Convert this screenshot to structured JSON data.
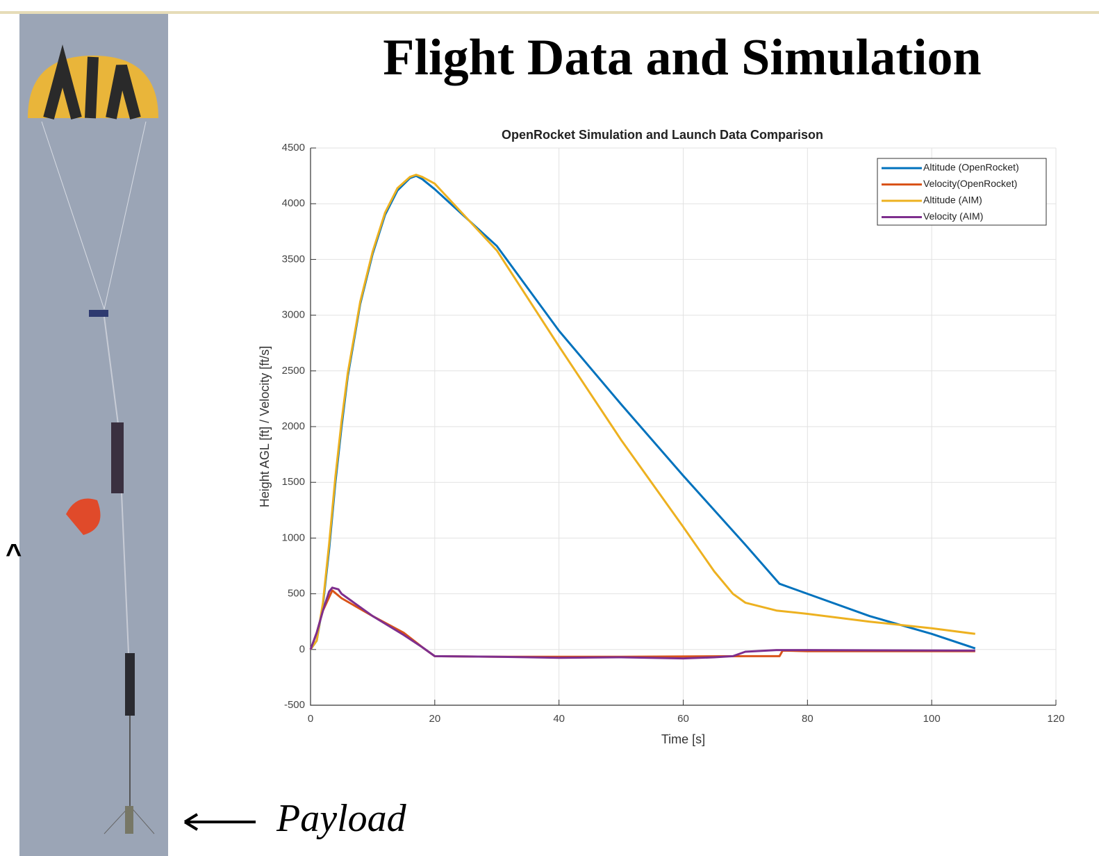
{
  "slide": {
    "title": "Flight Data and Simulation",
    "annotation": "Payload"
  },
  "chart_data": {
    "type": "line",
    "title": "OpenRocket Simulation and Launch Data Comparison",
    "x_label": "Time [s]",
    "y_label": "Height AGL [ft] / Velocity [ft/s]",
    "xlim": [
      0,
      120
    ],
    "xticks": [
      0,
      20,
      40,
      60,
      80,
      100,
      120
    ],
    "ylim": [
      -500,
      4500
    ],
    "yticks": [
      -500,
      0,
      500,
      1000,
      1500,
      2000,
      2500,
      3000,
      3500,
      4000,
      4500
    ],
    "grid": true,
    "legend": "upper-right",
    "series": [
      {
        "name": "Altitude (OpenRocket)",
        "color": "#0072bd",
        "x": [
          0,
          1,
          2,
          3,
          4,
          5,
          6,
          8,
          10,
          12,
          14,
          16,
          17,
          18,
          20,
          30,
          40,
          50,
          60,
          70,
          75.5,
          80,
          90,
          100,
          107
        ],
        "values": [
          0,
          80,
          400,
          900,
          1500,
          2000,
          2450,
          3100,
          3550,
          3900,
          4120,
          4230,
          4250,
          4220,
          4130,
          3620,
          2860,
          2200,
          1560,
          940,
          590,
          500,
          300,
          140,
          10
        ]
      },
      {
        "name": "Velocity(OpenRocket)",
        "color": "#d95319",
        "x": [
          0,
          1,
          2,
          3.5,
          5,
          10,
          15,
          18,
          20,
          30,
          50,
          70,
          75.5,
          76,
          80,
          107
        ],
        "values": [
          0,
          150,
          350,
          530,
          460,
          300,
          150,
          20,
          -60,
          -65,
          -65,
          -60,
          -60,
          -10,
          -15,
          -15
        ]
      },
      {
        "name": "Altitude (AIM)",
        "color": "#edb120",
        "x": [
          0,
          1,
          2,
          3,
          4,
          5,
          6,
          8,
          10,
          12,
          14,
          16,
          17,
          18,
          20,
          30,
          40,
          50,
          60,
          65,
          68,
          70,
          75,
          80,
          90,
          100,
          107
        ],
        "values": [
          0,
          80,
          420,
          950,
          1550,
          2050,
          2480,
          3120,
          3570,
          3920,
          4140,
          4240,
          4260,
          4240,
          4180,
          3580,
          2720,
          1880,
          1100,
          700,
          500,
          420,
          350,
          320,
          250,
          190,
          140
        ]
      },
      {
        "name": "Velocity (AIM)",
        "color": "#7e2f8e",
        "x": [
          0,
          1,
          2,
          3,
          3.5,
          4.5,
          5,
          10,
          15,
          18,
          20,
          30,
          40,
          50,
          60,
          65,
          68,
          70,
          75,
          80,
          107
        ],
        "values": [
          0,
          150,
          350,
          520,
          555,
          540,
          500,
          300,
          130,
          20,
          -60,
          -65,
          -75,
          -70,
          -80,
          -70,
          -60,
          -20,
          -5,
          -5,
          -10
        ]
      }
    ]
  }
}
